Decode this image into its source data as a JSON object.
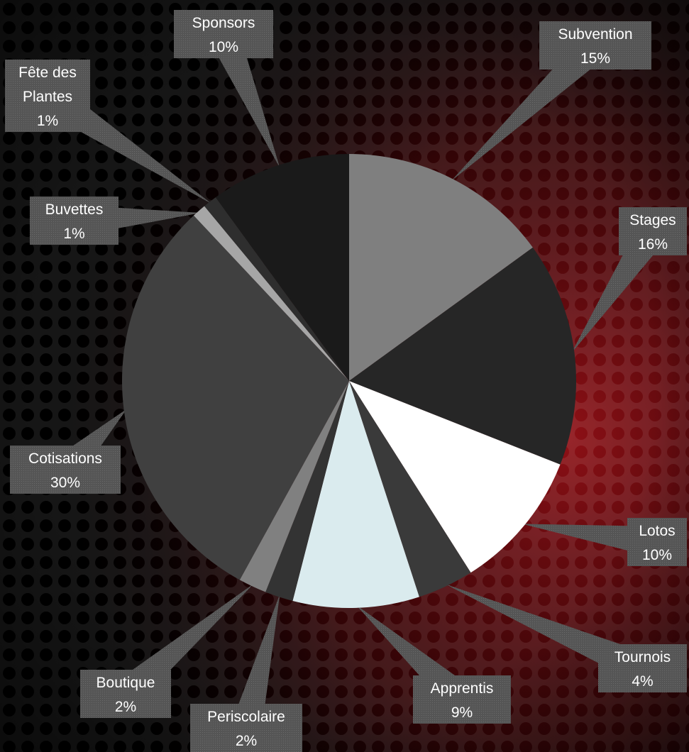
{
  "chart_data": {
    "type": "pie",
    "title": "",
    "start_angle_deg": 0,
    "direction": "clockwise",
    "slices": [
      {
        "name": "Subvention",
        "value": 15,
        "label": "15%",
        "color": "#7f7f7f"
      },
      {
        "name": "Stages",
        "value": 16,
        "label": "16%",
        "color": "#262626"
      },
      {
        "name": "Lotos",
        "value": 10,
        "label": "10%",
        "color": "#ffffff"
      },
      {
        "name": "Tournois",
        "value": 4,
        "label": "4%",
        "color": "#3a3a3a"
      },
      {
        "name": "Apprentis",
        "value": 9,
        "label": "9%",
        "color": "#daebee"
      },
      {
        "name": "Periscolaire",
        "value": 2,
        "label": "2%",
        "color": "#333333"
      },
      {
        "name": "Boutique",
        "value": 2,
        "label": "2%",
        "color": "#808080"
      },
      {
        "name": "Cotisations",
        "value": 30,
        "label": "30%",
        "color": "#404040"
      },
      {
        "name": "Buvettes",
        "value": 1,
        "label": "1%",
        "color": "#a6a6a6"
      },
      {
        "name": "Fête des Plantes",
        "value": 1,
        "label": "1%",
        "color": "#2e2e2e"
      },
      {
        "name": "Sponsors",
        "value": 10,
        "label": "10%",
        "color": "#1a1a1a"
      }
    ],
    "legend": "none",
    "data_labels": "callouts"
  },
  "style": {
    "background_base": "#0c0c0c",
    "background_accent": "#8a0f14",
    "callout_color": "#5a5a5a",
    "label_text_color": "#ffffff"
  }
}
